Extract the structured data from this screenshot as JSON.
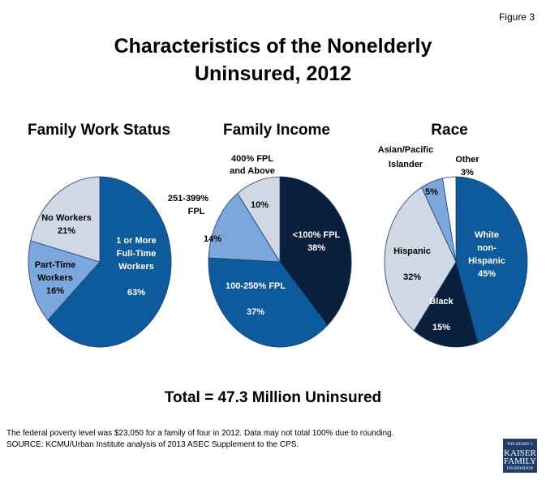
{
  "figure_label": "Figure 3",
  "title_line1": "Characteristics of the Nonelderly",
  "title_line2": "Uninsured, 2012",
  "total": "Total = 47.3 Million Uninsured",
  "note1": "The federal poverty level was $23,050 for a family of four in 2012. Data may not total 100% due to rounding.",
  "note2": "SOURCE: KCMU/Urban Institute analysis of 2013 ASEC Supplement to the CPS.",
  "logo": {
    "l1": "THE HENRY J.",
    "l2": "KAISER",
    "l3": "FAMILY",
    "l4": "FOUNDATION"
  },
  "chart_data": [
    {
      "type": "pie",
      "title": "Family Work Status",
      "slices": [
        {
          "label": "1 or More Full-Time Workers",
          "value": 63,
          "color": "#0d5a9c"
        },
        {
          "label": "Part-Time Workers",
          "value": 16,
          "color": "#7ba7dd"
        },
        {
          "label": "No Workers",
          "value": 21,
          "color": "#cfd8e4"
        }
      ]
    },
    {
      "type": "pie",
      "title": "Family Income",
      "slices": [
        {
          "label": "<100% FPL",
          "value": 38,
          "color": "#0a1f3c"
        },
        {
          "label": "100-250% FPL",
          "value": 37,
          "color": "#0d5a9c"
        },
        {
          "label": "251-399% FPL",
          "value": 14,
          "color": "#7ba7dd"
        },
        {
          "label": "400% FPL and Above",
          "value": 10,
          "color": "#cfd8e4"
        }
      ]
    },
    {
      "type": "pie",
      "title": "Race",
      "slices": [
        {
          "label": "White non-Hispanic",
          "value": 45,
          "color": "#0d5a9c"
        },
        {
          "label": "Black",
          "value": 15,
          "color": "#0a1f3c"
        },
        {
          "label": "Hispanic",
          "value": 32,
          "color": "#cfd8e4"
        },
        {
          "label": "Asian/Pacific Islander",
          "value": 5,
          "color": "#7ba7dd"
        },
        {
          "label": "Other",
          "value": 3,
          "color": "#ffffff"
        }
      ]
    }
  ]
}
